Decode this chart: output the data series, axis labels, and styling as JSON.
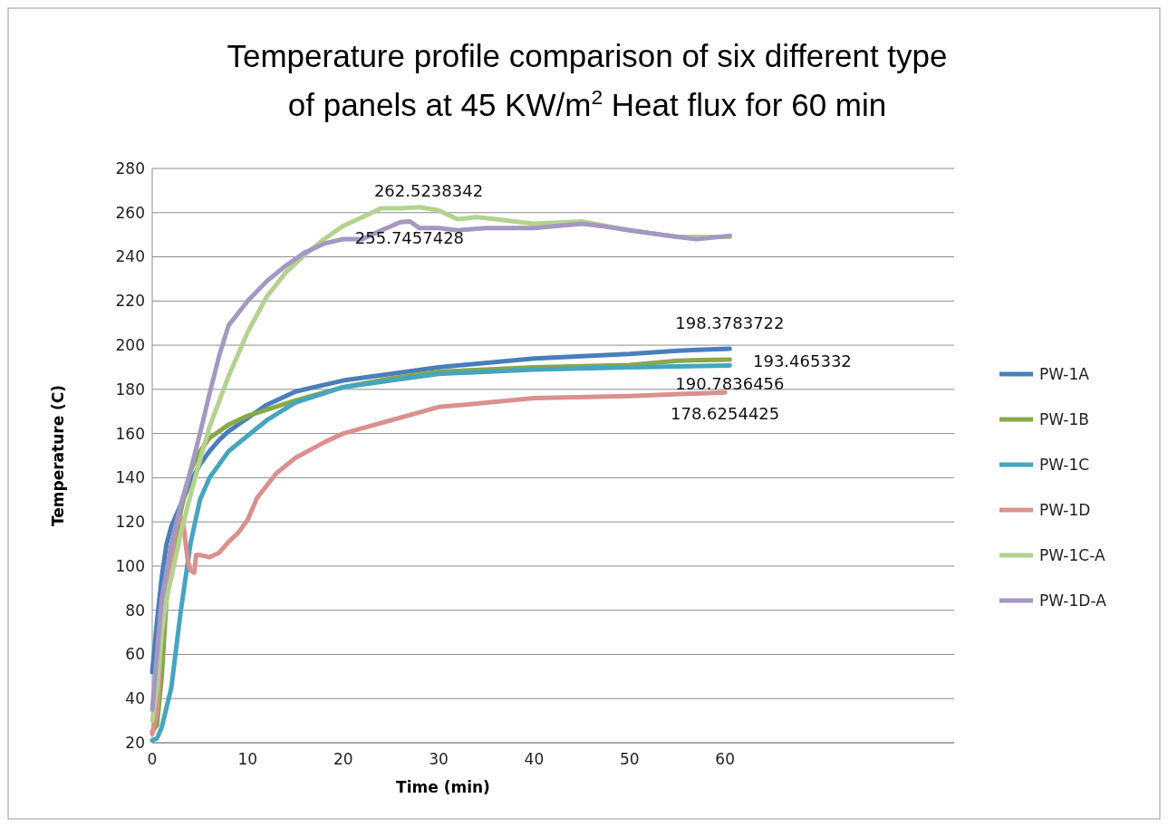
{
  "chart_data": {
    "type": "line",
    "title": "Temperature profile comparison of six different type of panels at 45 KW/m$^{2}$ Heat flux for 60 min",
    "xlabel": "Time (min)",
    "ylabel": "Temperature (C)",
    "xlim": [
      0,
      84
    ],
    "xticks": [
      0,
      10,
      20,
      30,
      40,
      50,
      60
    ],
    "ylim": [
      20,
      280
    ],
    "yticks": [
      20,
      40,
      60,
      80,
      100,
      120,
      140,
      160,
      180,
      200,
      220,
      240,
      260,
      280
    ],
    "grid": "y",
    "legend": "right",
    "marker": "none",
    "line_style": "solid",
    "series": [
      {
        "name": "PW-1A",
        "color": "#4a7ebb",
        "x": [
          0,
          0.5,
          1,
          1.5,
          2,
          3,
          4,
          5,
          6,
          7,
          8,
          10,
          12,
          15,
          20,
          25,
          30,
          40,
          50,
          55,
          60.5
        ],
        "values": [
          52,
          75,
          95,
          110,
          118,
          128,
          138,
          146,
          152,
          157,
          161,
          167,
          173,
          179,
          184,
          187,
          190,
          194,
          196,
          197.5,
          198.4
        ]
      },
      {
        "name": "PW-1B",
        "color": "#88a84a",
        "x": [
          0,
          0.5,
          1,
          1.5,
          2,
          3,
          4,
          5,
          6,
          8,
          10,
          15,
          20,
          25,
          30,
          40,
          50,
          55,
          60.5
        ],
        "values": [
          25,
          28,
          50,
          85,
          100,
          125,
          143,
          152,
          158,
          164,
          168,
          175,
          181,
          185,
          188,
          190,
          191,
          193,
          193.5
        ]
      },
      {
        "name": "PW-1C",
        "color": "#45a5be",
        "x": [
          0,
          0.5,
          1,
          2,
          3,
          4,
          5,
          6,
          8,
          10,
          12,
          15,
          20,
          25,
          30,
          40,
          50,
          60.5
        ],
        "values": [
          21,
          22,
          27,
          45,
          80,
          110,
          130,
          140,
          152,
          159,
          166,
          174,
          181,
          184,
          187,
          189,
          190,
          190.8
        ]
      },
      {
        "name": "PW-1D",
        "color": "#d99190",
        "x": [
          0,
          0.5,
          1,
          1.5,
          2,
          2.5,
          3,
          3.3,
          3.7,
          4,
          4.4,
          4.6,
          5,
          6,
          7,
          8,
          9,
          10,
          11,
          13,
          15,
          18,
          20,
          25,
          30,
          40,
          50,
          60
        ],
        "values": [
          24,
          35,
          70,
          90,
          105,
          118,
          122,
          118,
          103,
          98,
          97,
          105,
          105,
          104,
          106,
          111,
          115,
          121,
          131,
          142,
          149,
          156,
          160,
          166,
          172,
          176,
          177,
          178.6
        ]
      },
      {
        "name": "PW-1C-A",
        "color": "#b3d28f",
        "x": [
          0,
          0.5,
          1,
          1.5,
          2,
          3,
          4,
          5,
          6,
          8,
          10,
          12,
          14,
          16,
          18,
          20,
          22,
          24,
          26,
          28,
          30,
          32,
          34,
          36,
          40,
          45,
          50,
          55,
          60.5
        ],
        "values": [
          30,
          45,
          70,
          85,
          95,
          115,
          132,
          148,
          163,
          186,
          206,
          222,
          233,
          241,
          248,
          254,
          258,
          262,
          262,
          262.5,
          261,
          257,
          258,
          257,
          255,
          256,
          252,
          249,
          249
        ]
      },
      {
        "name": "PW-1D-A",
        "color": "#a498c2",
        "x": [
          0,
          0.5,
          1,
          2,
          3,
          4,
          5,
          6,
          7,
          8,
          10,
          12,
          14,
          16,
          18,
          20,
          22,
          24,
          26,
          27,
          28,
          30,
          32,
          35,
          40,
          45,
          47,
          50,
          55,
          57,
          60.5
        ],
        "values": [
          35,
          60,
          85,
          110,
          128,
          143,
          160,
          178,
          195,
          209,
          220,
          229,
          236,
          242,
          246,
          248,
          248,
          252,
          255.7,
          256,
          253,
          253,
          252,
          253,
          253,
          255,
          254,
          252,
          249,
          248,
          249.5
        ]
      }
    ],
    "annotations": [
      {
        "text": "262.5238342",
        "x": 28,
        "y": 262.5238342
      },
      {
        "text": "255.7457428",
        "x": 26,
        "y": 255.7457428
      },
      {
        "text": "198.3783722",
        "x": 60.5,
        "y": 198.3783722
      },
      {
        "text": "193.465332",
        "x": 60.5,
        "y": 193.465332
      },
      {
        "text": "190.7836456",
        "x": 60.5,
        "y": 190.7836456
      },
      {
        "text": "178.6254425",
        "x": 60,
        "y": 178.6254425
      }
    ]
  }
}
